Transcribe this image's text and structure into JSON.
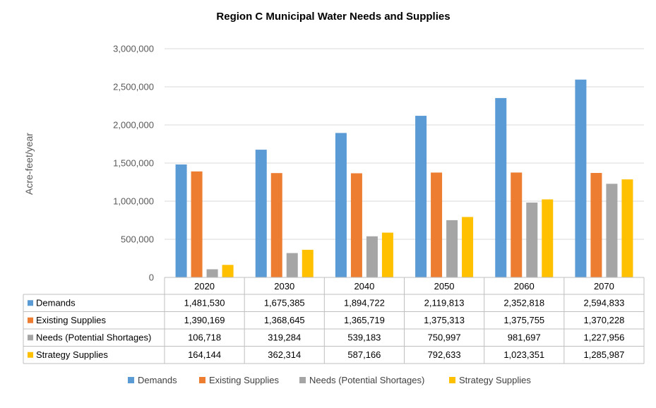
{
  "chart_data": {
    "type": "bar",
    "title": "Region C Municipal Water Needs and Supplies",
    "ylabel": "Acre-feet/year",
    "xlabel": "",
    "ylim": [
      0,
      3000000
    ],
    "y_ticks": [
      "0",
      "500,000",
      "1,000,000",
      "1,500,000",
      "2,000,000",
      "2,500,000",
      "3,000,000"
    ],
    "grid": true,
    "legend_position": "bottom",
    "categories": [
      "2020",
      "2030",
      "2040",
      "2050",
      "2060",
      "2070"
    ],
    "series": [
      {
        "name": "Demands",
        "color": "#5B9BD5",
        "values": [
          1481530,
          1675385,
          1894722,
          2119813,
          2352818,
          2594833
        ],
        "labels": [
          "1,481,530",
          "1,675,385",
          "1,894,722",
          "2,119,813",
          "2,352,818",
          "2,594,833"
        ]
      },
      {
        "name": "Existing Supplies",
        "color": "#ED7D31",
        "values": [
          1390169,
          1368645,
          1365719,
          1375313,
          1375755,
          1370228
        ],
        "labels": [
          "1,390,169",
          "1,368,645",
          "1,365,719",
          "1,375,313",
          "1,375,755",
          "1,370,228"
        ]
      },
      {
        "name": "Needs (Potential Shortages)",
        "color": "#A5A5A5",
        "values": [
          106718,
          319284,
          539183,
          750997,
          981697,
          1227956
        ],
        "labels": [
          "106,718",
          "319,284",
          "539,183",
          "750,997",
          "981,697",
          "1,227,956"
        ]
      },
      {
        "name": "Strategy Supplies",
        "color": "#FFC000",
        "values": [
          164144,
          362314,
          587166,
          792633,
          1023351,
          1285987
        ],
        "labels": [
          "164,144",
          "362,314",
          "587,166",
          "792,633",
          "1,023,351",
          "1,285,987"
        ]
      }
    ],
    "data_table": true
  }
}
